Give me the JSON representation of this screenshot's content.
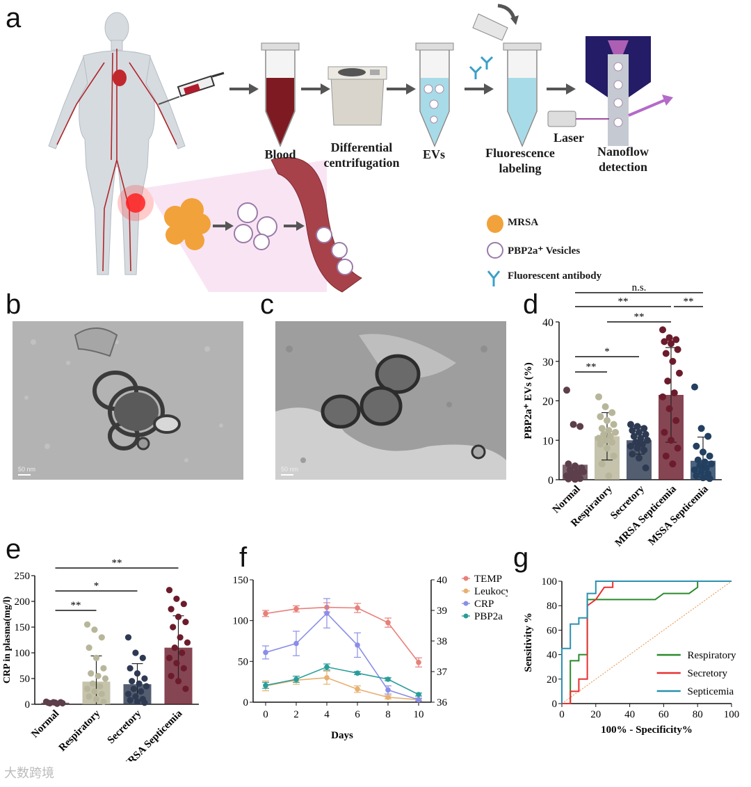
{
  "panels": {
    "a": {
      "letter": "a",
      "steps": [
        "Blood",
        "Differential centrifugation",
        "EVs",
        "Fluorescence labeling",
        "Laser",
        "Nanoflow detection"
      ],
      "legend": [
        "MRSA",
        "PBP2a⁺ Vesicles",
        "Fluorescent antibody"
      ]
    },
    "b": {
      "letter": "b",
      "scale_bar": "50 nm"
    },
    "c": {
      "letter": "c",
      "scale_bar": "50 nm"
    },
    "d": {
      "letter": "d"
    },
    "e": {
      "letter": "e"
    },
    "f": {
      "letter": "f"
    },
    "g": {
      "letter": "g"
    }
  },
  "watermark": "大数跨境",
  "colors": {
    "normal": "#5c3f4a",
    "respiratory": "#b8b69a",
    "secretory": "#2e3a52",
    "mrsa": "#6b1c2c",
    "mssa": "#234060"
  },
  "chart_data": [
    {
      "panel": "d",
      "type": "bar",
      "ylabel": "PBP2a⁺ EVs (%)",
      "ylim": [
        0,
        40
      ],
      "yticks": [
        0,
        10,
        20,
        30,
        40
      ],
      "categories": [
        "Normal",
        "Respiratory",
        "Secretory",
        "MRSA Septicemia",
        "MSSA Septicemia"
      ],
      "values": [
        3.8,
        11,
        10,
        21.5,
        4.8
      ],
      "errors": [
        0,
        6,
        3.5,
        12,
        6
      ],
      "points": [
        [
          22.7,
          14,
          13.5,
          4,
          3.5,
          3,
          2.5,
          2,
          2,
          1.5,
          1,
          1,
          0.5,
          0.3,
          0.2,
          0.1
        ],
        [
          21,
          18.5,
          17,
          16,
          15,
          14,
          13,
          12.5,
          12,
          11.5,
          11,
          10.5,
          10,
          9.5,
          9,
          8,
          6,
          4,
          1
        ],
        [
          14,
          13.5,
          13,
          12.5,
          12,
          11.5,
          11,
          10.5,
          10,
          9.5,
          9,
          8.5,
          8,
          7.5,
          6.5,
          5.5,
          3
        ],
        [
          38,
          36,
          35.5,
          35,
          34.5,
          33,
          32,
          30,
          27,
          25,
          22,
          21,
          18,
          15,
          12,
          10,
          8,
          6,
          4
        ],
        [
          23.5,
          13,
          11,
          8.5,
          7,
          6,
          5,
          4.5,
          4,
          3.5,
          3,
          2.5,
          2,
          1.5,
          1,
          0.5,
          0.3
        ]
      ],
      "significance": [
        {
          "from": 0,
          "to": 1,
          "label": "**"
        },
        {
          "from": 0,
          "to": 2,
          "label": "*"
        },
        {
          "from": 1,
          "to": 3,
          "label": "**"
        },
        {
          "from": 0,
          "to": 3,
          "label": "**"
        },
        {
          "from": 3,
          "to": 4,
          "label": "**"
        },
        {
          "from": 0,
          "to": 4,
          "label": "n.s."
        }
      ]
    },
    {
      "panel": "e",
      "type": "bar",
      "ylabel": "CRP in plasma(mg/l)",
      "ylim": [
        0,
        250
      ],
      "yticks": [
        0,
        50,
        100,
        150,
        200,
        250
      ],
      "categories": [
        "Normal",
        "Respiratory",
        "Secretory",
        "MRSA Septicemia"
      ],
      "values": [
        3,
        44,
        39,
        110
      ],
      "errors": [
        1,
        50,
        40,
        62
      ],
      "points": [
        [
          5,
          4,
          4,
          3,
          3,
          2,
          2,
          1
        ],
        [
          155,
          145,
          130,
          110,
          90,
          70,
          60,
          55,
          50,
          40,
          35,
          30,
          25,
          20,
          15,
          10,
          5
        ],
        [
          130,
          100,
          90,
          70,
          60,
          50,
          45,
          40,
          35,
          30,
          25,
          20,
          15,
          10,
          8,
          5,
          3
        ],
        [
          222,
          205,
          195,
          185,
          170,
          160,
          150,
          130,
          120,
          110,
          100,
          90,
          80,
          70,
          55,
          45,
          30
        ]
      ],
      "significance": [
        {
          "from": 0,
          "to": 1,
          "label": "**"
        },
        {
          "from": 0,
          "to": 2,
          "label": "*"
        },
        {
          "from": 0,
          "to": 3,
          "label": "**"
        }
      ]
    },
    {
      "panel": "f",
      "type": "line",
      "xlabel": "Days",
      "x": [
        0,
        2,
        4,
        6,
        8,
        10
      ],
      "ylim_left": [
        0,
        150
      ],
      "yticks_left": [
        0,
        50,
        100,
        150
      ],
      "ylim_right": [
        36,
        40
      ],
      "yticks_right": [
        36,
        37,
        38,
        39,
        40
      ],
      "series": [
        {
          "name": "TEMP",
          "axis": "right",
          "color": "#e8807a",
          "values": [
            38.9,
            39.05,
            39.1,
            39.08,
            38.6,
            37.3
          ],
          "errors": [
            0.1,
            0.1,
            0.15,
            0.15,
            0.15,
            0.15
          ]
        },
        {
          "name": "Leukocyte",
          "axis": "left",
          "color": "#e8b070",
          "values": [
            20,
            27,
            30,
            16,
            6,
            3
          ],
          "errors": [
            6,
            5,
            8,
            4,
            2,
            1
          ]
        },
        {
          "name": "CRP",
          "axis": "left",
          "color": "#8a8ee8",
          "values": [
            61,
            72,
            109,
            70,
            15,
            3
          ],
          "errors": [
            8,
            15,
            18,
            15,
            5,
            2
          ]
        },
        {
          "name": "PBP2a",
          "axis": "right",
          "color": "#2a9d9a",
          "values": [
            36.55,
            36.75,
            37.15,
            36.95,
            36.75,
            36.25
          ],
          "errors": [
            0.1,
            0.1,
            0.1,
            0.05,
            0.05,
            0.05
          ]
        }
      ]
    },
    {
      "panel": "g",
      "type": "line",
      "xlabel": "100% - Specificity%",
      "ylabel": "Sensitivity %",
      "xlim": [
        0,
        100
      ],
      "ylim": [
        0,
        100
      ],
      "xticks": [
        0,
        20,
        40,
        60,
        80,
        100
      ],
      "yticks": [
        0,
        20,
        40,
        60,
        80,
        100
      ],
      "series": [
        {
          "name": "Respiratory",
          "color": "#2a8a2a",
          "x": [
            0,
            5,
            5,
            10,
            10,
            15,
            15,
            55,
            60,
            75,
            80,
            80,
            100
          ],
          "y": [
            0,
            0,
            35,
            35,
            40,
            40,
            85,
            85,
            90,
            90,
            95,
            100,
            100
          ]
        },
        {
          "name": "Secretory",
          "color": "#e83030",
          "x": [
            0,
            5,
            5,
            10,
            10,
            15,
            15,
            20,
            25,
            30,
            30,
            100
          ],
          "y": [
            0,
            0,
            10,
            10,
            20,
            20,
            80,
            85,
            95,
            95,
            100,
            100
          ]
        },
        {
          "name": "Septicemia",
          "color": "#2a90b0",
          "x": [
            0,
            0,
            5,
            5,
            10,
            10,
            15,
            15,
            20,
            20,
            100
          ],
          "y": [
            0,
            45,
            45,
            65,
            65,
            70,
            70,
            90,
            90,
            100,
            100
          ]
        }
      ]
    }
  ]
}
